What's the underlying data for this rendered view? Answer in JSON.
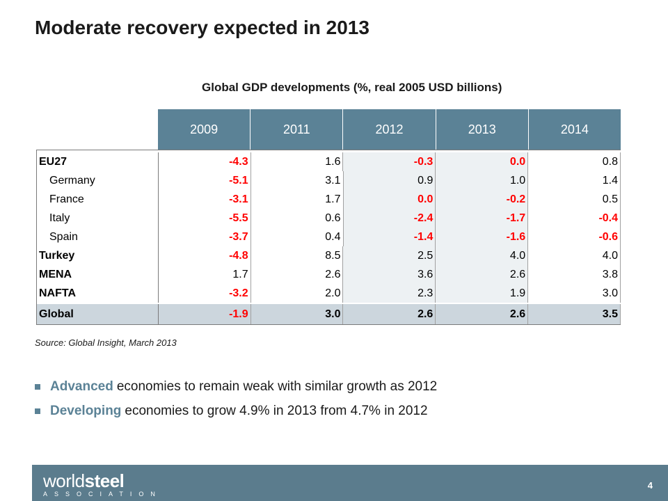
{
  "title": "Moderate recovery expected in 2013",
  "subtitle": "Global GDP developments (%, real 2005 USD billions)",
  "table": {
    "years": [
      "2009",
      "2011",
      "2012",
      "2013",
      "2014"
    ],
    "rows": [
      {
        "label": "EU27",
        "values": [
          "-4.3",
          "1.6",
          "-0.3",
          "0.0",
          "0.8"
        ]
      },
      {
        "label": "Germany",
        "values": [
          "-5.1",
          "3.1",
          "0.9",
          "1.0",
          "1.4"
        ]
      },
      {
        "label": "France",
        "values": [
          "-3.1",
          "1.7",
          "0.0",
          "-0.2",
          "0.5"
        ]
      },
      {
        "label": "Italy",
        "values": [
          "-5.5",
          "0.6",
          "-2.4",
          "-1.7",
          "-0.4"
        ]
      },
      {
        "label": "Spain",
        "values": [
          "-3.7",
          "0.4",
          "-1.4",
          "-1.6",
          "-0.6"
        ]
      },
      {
        "label": "Turkey",
        "values": [
          "-4.8",
          "8.5",
          "2.5",
          "4.0",
          "4.0"
        ]
      },
      {
        "label": "MENA",
        "values": [
          "1.7",
          "2.6",
          "3.6",
          "2.6",
          "3.8"
        ]
      },
      {
        "label": "NAFTA",
        "values": [
          "-3.2",
          "2.0",
          "2.3",
          "1.9",
          "3.0"
        ]
      },
      {
        "label": "Global",
        "values": [
          "-1.9",
          "3.0",
          "2.6",
          "2.6",
          "3.5"
        ]
      }
    ]
  },
  "source": "Source:  Global Insight, March 2013",
  "bullets": [
    {
      "highlight": "Advanced",
      "text": "economies to remain weak with similar growth as 2012"
    },
    {
      "highlight": "Developing",
      "text": "economies to grow 4.9% in 2013 from 4.7% in 2012"
    }
  ],
  "footer": {
    "logo_light": "world",
    "logo_bold": "steel",
    "logo_sub": "ASSOCIATION",
    "page_number": "4"
  },
  "colors": {
    "accent": "#5b8296",
    "negative": "#ff0000",
    "footer": "#5b7c8d"
  }
}
